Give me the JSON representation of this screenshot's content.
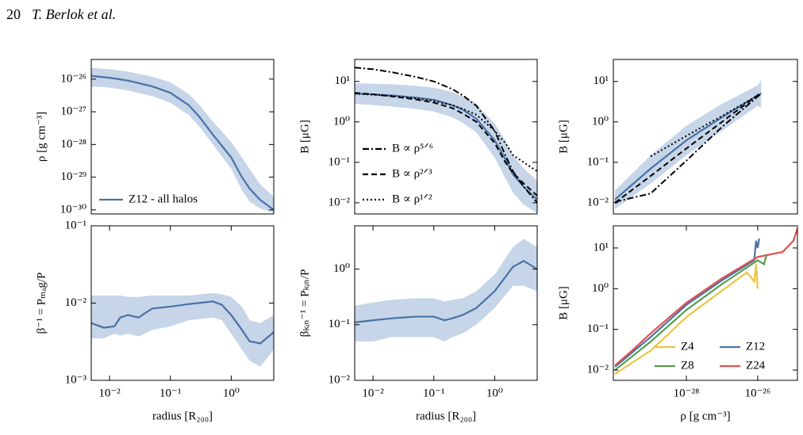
{
  "header": {
    "page": "20",
    "running_title": "T. Berlok et al."
  },
  "chart_data": [
    {
      "type": "line",
      "xscale": "log",
      "yscale": "log",
      "ylabel": "ρ  [g cm⁻³]",
      "xlim": [
        0.005,
        5
      ],
      "ylim": [
        7.5e-31,
        4e-26
      ],
      "yticks": [
        {
          "value": 1e-26,
          "label": "10⁻²⁶"
        },
        {
          "value": 1e-27,
          "label": "10⁻²⁷"
        },
        {
          "value": 1e-28,
          "label": "10⁻²⁸"
        },
        {
          "value": 1e-29,
          "label": "10⁻²⁹"
        },
        {
          "value": 1e-30,
          "label": "10⁻³⁰"
        }
      ],
      "legend": "lower left",
      "ncol": 1,
      "x": [
        0.005,
        0.01,
        0.02,
        0.05,
        0.1,
        0.2,
        0.3,
        0.5,
        1,
        1.5,
        2,
        3,
        5
      ],
      "series": [
        {
          "name": "Z12 - all halos",
          "color": "#4a72a6",
          "dash": "solid",
          "band_color": "#c6d5e8",
          "values": [
            1.25e-26,
            1.1e-26,
            9e-27,
            6e-27,
            3.8e-27,
            1.6e-27,
            7e-28,
            2e-28,
            4e-29,
            1e-29,
            4.5e-30,
            2e-30,
            1e-30
          ],
          "band_upper": [
            2.2e-26,
            2e-26,
            1.7e-26,
            1.2e-26,
            8e-27,
            3.5e-27,
            1.6e-27,
            5e-28,
            1.2e-28,
            4e-29,
            1.8e-29,
            6e-30,
            2.5e-30
          ],
          "band_lower": [
            6e-27,
            5.5e-27,
            4.5e-27,
            3e-27,
            1.9e-27,
            8e-28,
            3.5e-28,
            1e-28,
            1.8e-29,
            4e-30,
            1.8e-30,
            1.1e-30,
            8e-31
          ]
        }
      ]
    },
    {
      "type": "line",
      "xscale": "log",
      "yscale": "log",
      "ylabel": "B  [μG]",
      "xlim": [
        0.005,
        5
      ],
      "ylim": [
        0.0053,
        35
      ],
      "yticks": [
        {
          "value": 10,
          "label": "10¹"
        },
        {
          "value": 1,
          "label": "10⁰"
        },
        {
          "value": 0.1,
          "label": "10⁻¹"
        },
        {
          "value": 0.01,
          "label": "10⁻²"
        }
      ],
      "legend": "lower left",
      "ncol": 1,
      "x": [
        0.005,
        0.01,
        0.02,
        0.05,
        0.1,
        0.2,
        0.3,
        0.5,
        1,
        1.5,
        2,
        3,
        5
      ],
      "series": [
        {
          "color": "#4a72a6",
          "dash": "solid",
          "band_color": "#c6d5e8",
          "values": [
            5,
            4.8,
            4.5,
            4,
            3.5,
            2.6,
            2,
            1.2,
            0.35,
            0.12,
            0.05,
            0.025,
            0.012
          ],
          "band_upper": [
            9,
            8.8,
            8.5,
            7.8,
            7,
            5.5,
            4.3,
            2.8,
            0.9,
            0.35,
            0.15,
            0.07,
            0.035
          ],
          "band_lower": [
            2.8,
            2.6,
            2.4,
            2.1,
            1.8,
            1.3,
            0.95,
            0.55,
            0.13,
            0.04,
            0.018,
            0.009,
            0.0055
          ]
        },
        {
          "name": "B ∝ ρ⁵ᐟ⁶",
          "color": "#000000",
          "dash": "dashdot",
          "values": [
            22,
            20,
            17,
            13,
            10,
            6.5,
            4.5,
            2.5,
            0.6,
            0.15,
            0.06,
            0.025,
            0.01
          ]
        },
        {
          "name": "B ∝ ρ²ᐟ³",
          "color": "#000000",
          "dash": "dashed",
          "values": [
            5.2,
            4.8,
            4.3,
            3.6,
            3,
            2.2,
            1.6,
            1,
            0.3,
            0.1,
            0.055,
            0.03,
            0.015
          ]
        },
        {
          "name": "B ∝ ρ¹ᐟ²",
          "color": "#000000",
          "dash": "dotted",
          "values": [
            5,
            4.7,
            4.4,
            3.8,
            3.3,
            2.6,
            2.1,
            1.5,
            0.6,
            0.3,
            0.15,
            0.1,
            0.06
          ]
        }
      ]
    },
    {
      "type": "line",
      "xscale": "log",
      "yscale": "log",
      "ylabel": "B  [μG]",
      "xlim": [
        9e-31,
        1.3e-25
      ],
      "ylim": [
        0.0053,
        35
      ],
      "yticks": [
        {
          "value": 10,
          "label": "10¹"
        },
        {
          "value": 1,
          "label": "10⁰"
        },
        {
          "value": 0.1,
          "label": "10⁻¹"
        },
        {
          "value": 0.01,
          "label": "10⁻²"
        }
      ],
      "series": [
        {
          "color": "#4a72a6",
          "dash": "solid",
          "band_color": "#c6d5e8",
          "x": [
            1e-30,
            1e-29,
            1e-28,
            1e-27,
            1e-26,
            1.25e-26
          ],
          "values": [
            0.012,
            0.07,
            0.35,
            1.3,
            4.5,
            5
          ],
          "band_upper": [
            0.02,
            0.15,
            0.8,
            2.8,
            8,
            11
          ],
          "band_lower": [
            0.007,
            0.03,
            0.15,
            0.6,
            2.5,
            2.2
          ]
        },
        {
          "color": "#000000",
          "dash": "dashdot",
          "x": [
            1e-30,
            1e-29,
            1e-28,
            1e-27,
            1.25e-26
          ],
          "values": [
            0.0105,
            0.017,
            0.11,
            0.75,
            5
          ]
        },
        {
          "color": "#000000",
          "dash": "dashed",
          "x": [
            1e-30,
            1e-29,
            1e-28,
            1e-27,
            1e-26,
            1.25e-26
          ],
          "values": [
            0.01,
            0.046,
            0.22,
            1,
            4.6,
            5.4
          ]
        },
        {
          "color": "#000000",
          "dash": "dotted",
          "x": [
            1e-29,
            1e-28,
            1e-27,
            1e-26,
            1.25e-26
          ],
          "values": [
            0.14,
            0.45,
            1.4,
            4.5,
            5
          ]
        }
      ]
    },
    {
      "type": "line",
      "xscale": "log",
      "yscale": "log",
      "ylabel": "β⁻¹ = Pₘₐg/P",
      "xlabel": "radius  [R₂₀₀]",
      "xlim": [
        0.005,
        5
      ],
      "ylim": [
        0.001,
        0.1
      ],
      "xticks": [
        {
          "value": 0.01,
          "label": "10⁻²"
        },
        {
          "value": 0.1,
          "label": "10⁻¹"
        },
        {
          "value": 1,
          "label": "10⁰"
        }
      ],
      "yticks": [
        {
          "value": 0.1,
          "label": "10⁻¹"
        },
        {
          "value": 0.01,
          "label": "10⁻²"
        },
        {
          "value": 0.001,
          "label": "10⁻³"
        }
      ],
      "x": [
        0.005,
        0.008,
        0.012,
        0.015,
        0.02,
        0.03,
        0.05,
        0.1,
        0.2,
        0.5,
        0.7,
        1,
        1.5,
        2,
        3,
        5
      ],
      "series": [
        {
          "color": "#4a72a6",
          "dash": "solid",
          "band_color": "#c6d5e8",
          "values": [
            0.0055,
            0.0048,
            0.005,
            0.0065,
            0.007,
            0.0065,
            0.0085,
            0.009,
            0.0097,
            0.0105,
            0.0095,
            0.007,
            0.0045,
            0.0032,
            0.003,
            0.0042
          ],
          "band_upper": [
            0.0125,
            0.0125,
            0.0125,
            0.0125,
            0.012,
            0.012,
            0.0125,
            0.0125,
            0.0125,
            0.0135,
            0.013,
            0.012,
            0.009,
            0.006,
            0.0055,
            0.007
          ],
          "band_lower": [
            0.0035,
            0.0035,
            0.004,
            0.0038,
            0.004,
            0.0037,
            0.0045,
            0.005,
            0.006,
            0.0065,
            0.006,
            0.004,
            0.0025,
            0.0018,
            0.0015,
            0.0025
          ]
        }
      ]
    },
    {
      "type": "line",
      "xscale": "log",
      "yscale": "log",
      "ylabel": "βₖᵢₙ⁻¹ = Pₖᵢₙ/P",
      "xlabel": "radius  [R₂₀₀]",
      "xlim": [
        0.005,
        5
      ],
      "ylim": [
        0.01,
        6
      ],
      "xticks": [
        {
          "value": 0.01,
          "label": "10⁻²"
        },
        {
          "value": 0.1,
          "label": "10⁻¹"
        },
        {
          "value": 1,
          "label": "10⁰"
        }
      ],
      "yticks": [
        {
          "value": 1,
          "label": "10⁰"
        },
        {
          "value": 0.1,
          "label": "10⁻¹"
        },
        {
          "value": 0.01,
          "label": "10⁻²"
        }
      ],
      "x": [
        0.005,
        0.01,
        0.02,
        0.05,
        0.1,
        0.15,
        0.2,
        0.3,
        0.5,
        1,
        2,
        3,
        5
      ],
      "series": [
        {
          "color": "#4a72a6",
          "dash": "solid",
          "band_color": "#c6d5e8",
          "values": [
            0.11,
            0.12,
            0.13,
            0.14,
            0.14,
            0.12,
            0.13,
            0.15,
            0.2,
            0.4,
            1.1,
            1.4,
            1
          ],
          "band_upper": [
            0.22,
            0.25,
            0.28,
            0.3,
            0.3,
            0.26,
            0.28,
            0.3,
            0.4,
            0.8,
            2.5,
            3.5,
            2.5
          ],
          "band_lower": [
            0.05,
            0.05,
            0.06,
            0.06,
            0.06,
            0.05,
            0.06,
            0.07,
            0.1,
            0.2,
            0.5,
            0.5,
            0.4
          ]
        }
      ]
    },
    {
      "type": "line",
      "xscale": "log",
      "yscale": "log",
      "ylabel": "B  [μG]",
      "xlabel": "ρ  [g cm⁻³]",
      "xlim": [
        9e-31,
        1.3e-25
      ],
      "ylim": [
        0.0056,
        35
      ],
      "xticks": [
        {
          "value": 1e-28,
          "label": "10⁻²⁸"
        },
        {
          "value": 1e-26,
          "label": "10⁻²⁶"
        }
      ],
      "yticks": [
        {
          "value": 10,
          "label": "10¹"
        },
        {
          "value": 1,
          "label": "10⁰"
        },
        {
          "value": 0.1,
          "label": "10⁻¹"
        },
        {
          "value": 0.01,
          "label": "10⁻²"
        }
      ],
      "legend": "lower right",
      "ncol": 2,
      "series": [
        {
          "name": "Z4",
          "color": "#ecc440",
          "dash": "solid",
          "x": [
            1e-30,
            2e-30,
            1e-29,
            1e-28,
            1e-27,
            5e-27,
            8e-27,
            9e-27,
            1e-26
          ],
          "values": [
            0.008,
            0.012,
            0.03,
            0.2,
            0.9,
            2.5,
            1.5,
            4,
            1
          ]
        },
        {
          "name": "Z8",
          "color": "#52a04c",
          "dash": "solid",
          "x": [
            1e-30,
            1e-29,
            1e-28,
            1e-27,
            1e-26,
            1.5e-26,
            1.8e-26
          ],
          "values": [
            0.01,
            0.05,
            0.3,
            1.3,
            5,
            4,
            7
          ]
        },
        {
          "name": "Z12",
          "color": "#4a72a6",
          "dash": "solid",
          "x": [
            1e-30,
            1e-29,
            1e-28,
            1e-27,
            8e-27,
            9e-27,
            1e-26,
            1.1e-26
          ],
          "values": [
            0.012,
            0.065,
            0.4,
            1.6,
            5,
            15,
            10,
            17
          ]
        },
        {
          "name": "Z24",
          "color": "#e05252",
          "dash": "solid",
          "x": [
            1e-30,
            3e-30,
            1e-29,
            1e-28,
            1e-27,
            1e-26,
            5e-26,
            1e-25,
            1.3e-25
          ],
          "values": [
            0.013,
            0.03,
            0.08,
            0.45,
            1.8,
            6,
            8,
            15,
            30
          ]
        }
      ]
    }
  ]
}
